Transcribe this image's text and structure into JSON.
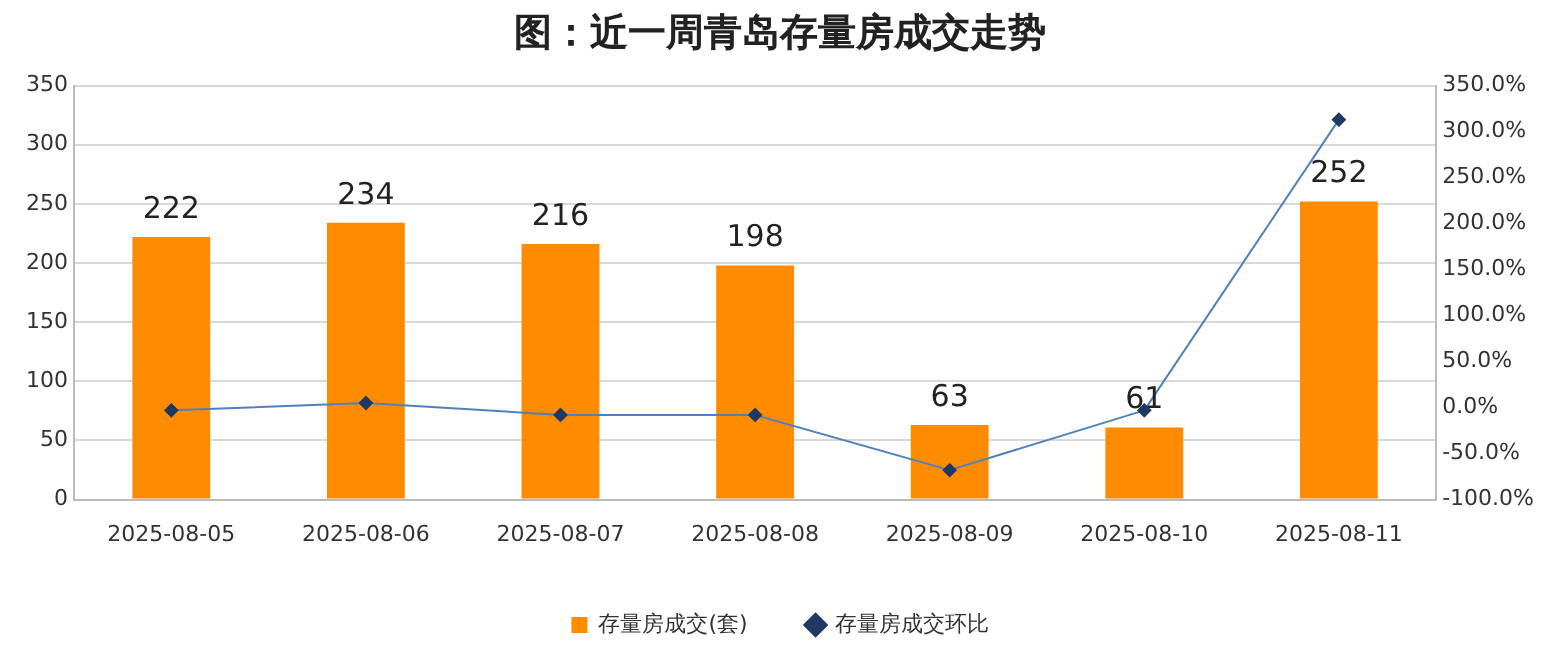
{
  "chart_data": {
    "type": "bar",
    "title": "图：近一周青岛存量房成交走势",
    "categories": [
      "2025-08-05",
      "2025-08-06",
      "2025-08-07",
      "2025-08-08",
      "2025-08-09",
      "2025-08-10",
      "2025-08-11"
    ],
    "series": [
      {
        "name": "存量房成交(套)",
        "color": "#ff8c00",
        "values": [
          222,
          234,
          216,
          198,
          63,
          61,
          252
        ],
        "value_labels": [
          "222",
          "234",
          "216",
          "198",
          "63",
          "61",
          "252"
        ]
      },
      {
        "name": "存量房成交环比",
        "type": "line",
        "axis": "y2",
        "color": "#4f81bd",
        "values": [
          -3,
          5,
          -8,
          -8,
          -68,
          -3,
          313
        ]
      }
    ],
    "ylim": [
      0,
      350
    ],
    "yticks": [
      0,
      50,
      100,
      150,
      200,
      250,
      300,
      350
    ],
    "y2lim": [
      -100,
      350
    ],
    "y2ticks": [
      {
        "value": -100,
        "label": "-100.0%"
      },
      {
        "value": -50,
        "label": "-50.0%"
      },
      {
        "value": 0,
        "label": "0.0%"
      },
      {
        "value": 50,
        "label": "50.0%"
      },
      {
        "value": 100,
        "label": "100.0%"
      },
      {
        "value": 150,
        "label": "150.0%"
      },
      {
        "value": 200,
        "label": "200.0%"
      },
      {
        "value": 250,
        "label": "250.0%"
      },
      {
        "value": 300,
        "label": "300.0%"
      },
      {
        "value": 350,
        "label": "350.0%"
      }
    ],
    "grid": "y",
    "legend": "bottom",
    "marker": "diamond",
    "line_style": "solid"
  }
}
